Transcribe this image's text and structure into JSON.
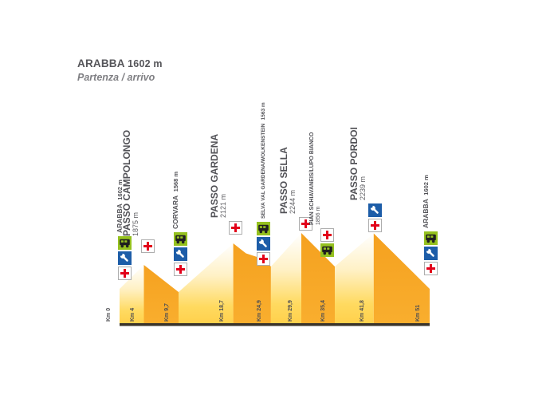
{
  "header": {
    "name": "ARABBA",
    "altitude": "1602 m",
    "subtitle": "Partenza / arrivo"
  },
  "profile": {
    "stations": [
      {
        "id": "arabba-start",
        "name": "ARABBA",
        "altitude": "1602 m",
        "km": 0,
        "style": "village",
        "icons": [
          "bus",
          "mechanic",
          "medical"
        ]
      },
      {
        "id": "passo-campolongo",
        "name": "PASSO CAMPOLONGO",
        "altitude": "1875 m",
        "km": 4,
        "style": "pass",
        "icons": [
          "medical"
        ]
      },
      {
        "id": "corvara",
        "name": "CORVARA",
        "altitude": "1568 m",
        "km": 9.7,
        "style": "village",
        "icons": [
          "bus",
          "mechanic",
          "medical"
        ]
      },
      {
        "id": "passo-gardena",
        "name": "PASSO GARDENA",
        "altitude": "2121 m",
        "km": 18.7,
        "style": "pass",
        "icons": [
          "medical"
        ]
      },
      {
        "id": "selva-val-gardena",
        "name": "SELVA VAL GARDENA/WOLKENSTEIN",
        "altitude": "1563 m",
        "km": 24.9,
        "style": "small",
        "icons": [
          "bus",
          "mechanic",
          "medical"
        ]
      },
      {
        "id": "passo-sella",
        "name": "PASSO SELLA",
        "altitude": "2244 m",
        "km": 29.9,
        "style": "pass",
        "icons": [
          "medical"
        ]
      },
      {
        "id": "pian-schiavaneis",
        "name": "PIAN SCHIAVANEIS/LUPO BIANCO",
        "altitude": "1856 m",
        "km": 35.4,
        "style": "small2",
        "icons": [
          "medical",
          "bus"
        ]
      },
      {
        "id": "passo-pordoi",
        "name": "PASSO PORDOI",
        "altitude": "2239 m",
        "km": 41.8,
        "style": "pass",
        "icons": [
          "mechanic",
          "medical"
        ]
      },
      {
        "id": "arabba-end",
        "name": "ARABBA",
        "altitude": "1602 m",
        "km": 51,
        "style": "village",
        "icons": [
          "bus",
          "mechanic",
          "medical"
        ]
      }
    ],
    "km_labels": [
      "Km 0",
      "Km 4",
      "Km 9,7",
      "Km 18,7",
      "Km 24,9",
      "Km 29,9",
      "Km 35,4",
      "Km 41,8",
      "Km 51"
    ]
  },
  "chart_data": {
    "type": "area",
    "title": "ARABBA 1602 m",
    "subtitle": "Partenza / arrivo",
    "xlabel": "Km",
    "ylabel": "m",
    "x_range": [
      0,
      51
    ],
    "points": [
      {
        "km": 0,
        "name": "Arabba",
        "ele_m": 1602
      },
      {
        "km": 4,
        "name": "Passo Campolongo",
        "ele_m": 1875
      },
      {
        "km": 9.7,
        "name": "Corvara",
        "ele_m": 1568
      },
      {
        "km": 18.7,
        "name": "Passo Gardena",
        "ele_m": 2121
      },
      {
        "km": 24.9,
        "name": "Selva Val Gardena/Wolkenstein",
        "ele_m": 1563
      },
      {
        "km": 29.9,
        "name": "Passo Sella",
        "ele_m": 2244
      },
      {
        "km": 35.4,
        "name": "Pian Schiavaneis/Lupo Bianco",
        "ele_m": 1856
      },
      {
        "km": 41.8,
        "name": "Passo Pordoi",
        "ele_m": 2239
      },
      {
        "km": 51,
        "name": "Arabba",
        "ele_m": 1602
      }
    ]
  },
  "colors": {
    "climb_top": "#ffffff",
    "climb_bottom": "#ffd04b",
    "descent": "#f5a11f",
    "baseline": "#3a342b",
    "medical_red": "#e2001a",
    "mechanic_blue": "#1d5da8",
    "bus_green": "#95c11f",
    "text": "#515156"
  }
}
